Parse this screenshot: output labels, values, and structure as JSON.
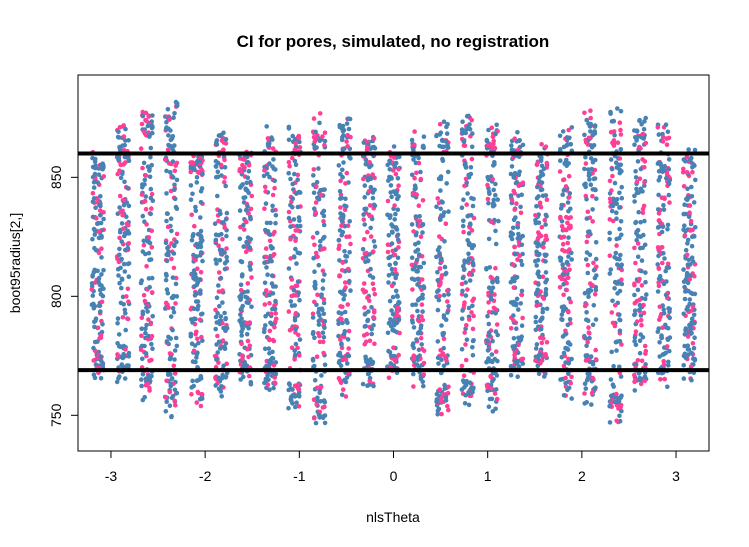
{
  "chart_data": {
    "type": "scatter",
    "title": "CI for pores, simulated, no registration",
    "xlabel": "nlsTheta",
    "ylabel": "boot95radius[2,]",
    "xlim": [
      -3.35,
      3.35
    ],
    "ylim": [
      735,
      893
    ],
    "x_ticks": [
      -3,
      -2,
      -1,
      0,
      1,
      2,
      3
    ],
    "y_ticks": [
      750,
      800,
      850
    ],
    "grid": false,
    "legend": "none",
    "reference_lines": [
      {
        "name": "upper",
        "y": 860
      },
      {
        "name": "lower",
        "y": 769
      }
    ],
    "columns_x": [
      -3.14,
      -2.87,
      -2.62,
      -2.36,
      -2.09,
      -1.83,
      -1.57,
      -1.31,
      -1.05,
      -0.79,
      -0.52,
      -0.26,
      0.0,
      0.26,
      0.52,
      0.79,
      1.05,
      1.31,
      1.57,
      1.83,
      2.09,
      2.36,
      2.62,
      2.87,
      3.14
    ],
    "column_ranges": [
      [
        764,
        862
      ],
      [
        763,
        872
      ],
      [
        756,
        879
      ],
      [
        749,
        882
      ],
      [
        750,
        864
      ],
      [
        756,
        869
      ],
      [
        763,
        865
      ],
      [
        758,
        873
      ],
      [
        752,
        872
      ],
      [
        746,
        877
      ],
      [
        757,
        877
      ],
      [
        762,
        870
      ],
      [
        765,
        865
      ],
      [
        762,
        870
      ],
      [
        749,
        874
      ],
      [
        753,
        876
      ],
      [
        751,
        873
      ],
      [
        764,
        869
      ],
      [
        766,
        864
      ],
      [
        757,
        871
      ],
      [
        754,
        878
      ],
      [
        747,
        879
      ],
      [
        758,
        875
      ],
      [
        761,
        873
      ],
      [
        764,
        863
      ]
    ],
    "series": [
      {
        "color": "#4682B4"
      },
      {
        "color": "#FF3E96"
      }
    ]
  }
}
